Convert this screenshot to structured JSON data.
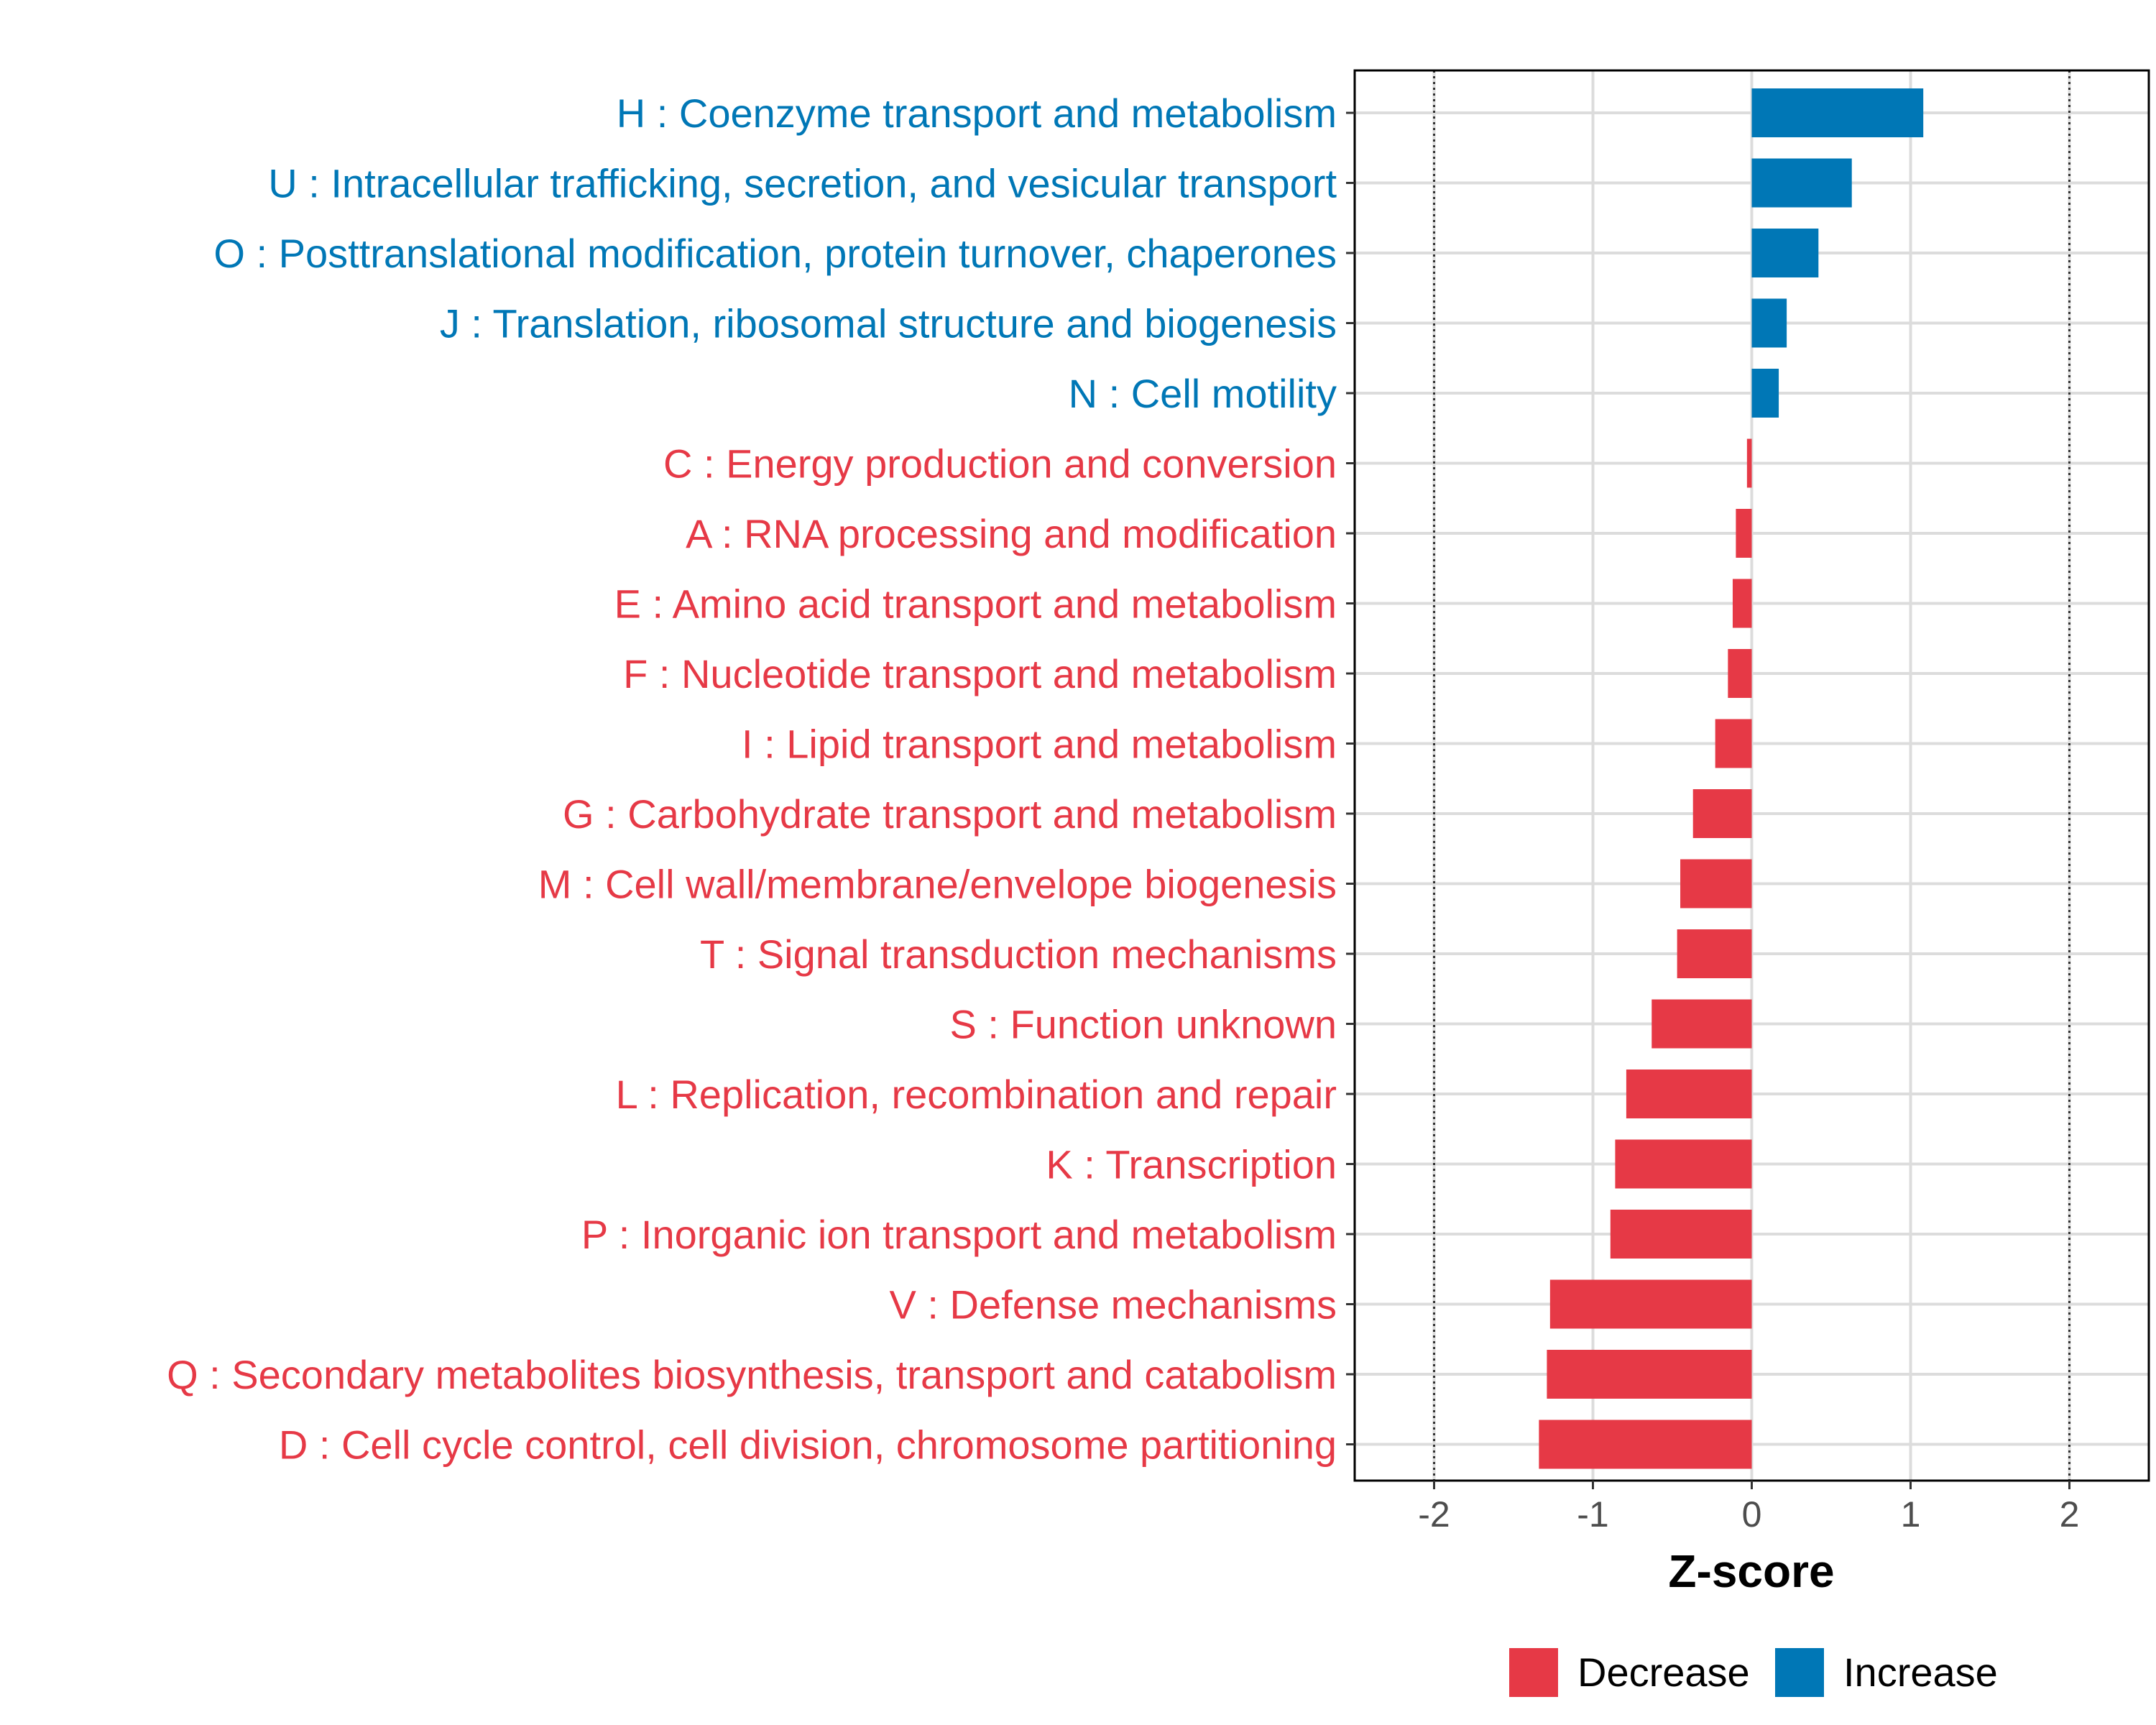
{
  "chart_data": {
    "type": "bar",
    "orientation": "horizontal",
    "xlabel": "Z-score",
    "ylabel": "",
    "xlim": [
      -2.5,
      2.5
    ],
    "xticks": [
      -2,
      -1,
      0,
      1,
      2
    ],
    "xtick_labels": [
      "-2",
      "-1",
      "0",
      "1",
      "2"
    ],
    "reference_lines": [
      -2,
      2
    ],
    "grid": true,
    "colors": {
      "Decrease": "#e63946",
      "Increase": "#0077b6"
    },
    "categories": [
      "H : Coenzyme transport and metabolism",
      "U : Intracellular trafficking, secretion, and vesicular transport",
      "O : Posttranslational modification, protein turnover, chaperones",
      "J : Translation, ribosomal structure and biogenesis",
      "N : Cell motility",
      "C : Energy production and conversion",
      "A : RNA processing and modification",
      "E : Amino acid transport and metabolism",
      "F : Nucleotide transport and metabolism",
      "I : Lipid transport and metabolism",
      "G : Carbohydrate transport and metabolism",
      "M : Cell wall/membrane/envelope biogenesis",
      "T : Signal transduction mechanisms",
      "S : Function unknown",
      "L : Replication, recombination and repair",
      "K : Transcription",
      "P : Inorganic ion transport and metabolism",
      "V : Defense mechanisms",
      "Q : Secondary metabolites biosynthesis, transport and catabolism",
      "D : Cell cycle control, cell division, chromosome partitioning"
    ],
    "values": [
      1.08,
      0.63,
      0.42,
      0.22,
      0.17,
      -0.03,
      -0.1,
      -0.12,
      -0.15,
      -0.23,
      -0.37,
      -0.45,
      -0.47,
      -0.63,
      -0.79,
      -0.86,
      -0.89,
      -1.27,
      -1.29,
      -1.34
    ],
    "direction": [
      "Increase",
      "Increase",
      "Increase",
      "Increase",
      "Increase",
      "Decrease",
      "Decrease",
      "Decrease",
      "Decrease",
      "Decrease",
      "Decrease",
      "Decrease",
      "Decrease",
      "Decrease",
      "Decrease",
      "Decrease",
      "Decrease",
      "Decrease",
      "Decrease",
      "Decrease"
    ],
    "legend": [
      {
        "label": "Decrease",
        "color": "#e63946"
      },
      {
        "label": "Increase",
        "color": "#0077b6"
      }
    ],
    "legend_position": "bottom"
  }
}
